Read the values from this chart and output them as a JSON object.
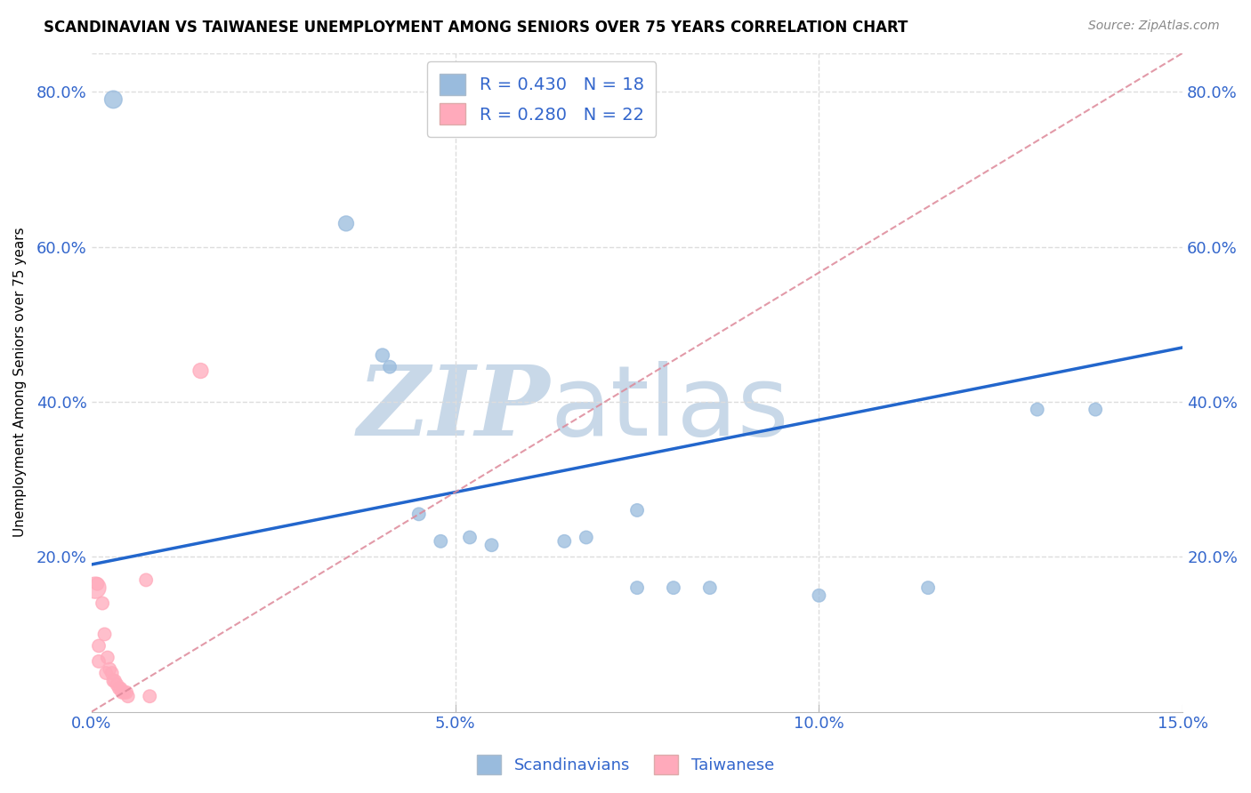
{
  "title": "SCANDINAVIAN VS TAIWANESE UNEMPLOYMENT AMONG SENIORS OVER 75 YEARS CORRELATION CHART",
  "source": "Source: ZipAtlas.com",
  "ylabel": "Unemployment Among Seniors over 75 years",
  "scandinavian_R": 0.43,
  "scandinavian_N": 18,
  "taiwanese_R": 0.28,
  "taiwanese_N": 22,
  "blue_color": "#99BBDD",
  "blue_edge_color": "#7799BB",
  "pink_color": "#FFAABB",
  "pink_edge_color": "#EE8899",
  "line_color": "#2266CC",
  "dashed_line_color": "#DD8899",
  "tick_label_color": "#3366CC",
  "scandinavian_points": [
    [
      0.3,
      79.0
    ],
    [
      3.5,
      63.0
    ],
    [
      4.0,
      46.0
    ],
    [
      4.1,
      44.5
    ],
    [
      4.5,
      25.5
    ],
    [
      4.8,
      22.0
    ],
    [
      5.2,
      22.5
    ],
    [
      5.5,
      21.5
    ],
    [
      6.5,
      22.0
    ],
    [
      6.8,
      22.5
    ],
    [
      7.5,
      26.0
    ],
    [
      7.5,
      16.0
    ],
    [
      8.0,
      16.0
    ],
    [
      8.5,
      16.0
    ],
    [
      10.0,
      15.0
    ],
    [
      11.5,
      16.0
    ],
    [
      13.0,
      39.0
    ],
    [
      13.8,
      39.0
    ]
  ],
  "taiwanese_points": [
    [
      0.05,
      16.0
    ],
    [
      0.08,
      16.5
    ],
    [
      0.1,
      8.5
    ],
    [
      0.1,
      6.5
    ],
    [
      0.15,
      14.0
    ],
    [
      0.18,
      10.0
    ],
    [
      0.2,
      5.0
    ],
    [
      0.22,
      7.0
    ],
    [
      0.25,
      5.5
    ],
    [
      0.28,
      5.0
    ],
    [
      0.3,
      4.0
    ],
    [
      0.32,
      4.0
    ],
    [
      0.35,
      3.5
    ],
    [
      0.38,
      3.0
    ],
    [
      0.4,
      3.0
    ],
    [
      0.42,
      2.5
    ],
    [
      0.45,
      2.5
    ],
    [
      0.48,
      2.5
    ],
    [
      0.5,
      2.0
    ],
    [
      0.75,
      17.0
    ],
    [
      0.8,
      2.0
    ],
    [
      1.5,
      44.0
    ]
  ],
  "scand_marker_sizes": [
    200,
    150,
    120,
    110,
    110,
    110,
    110,
    110,
    110,
    110,
    110,
    110,
    110,
    110,
    110,
    110,
    110,
    110
  ],
  "taiwan_marker_sizes": [
    300,
    110,
    110,
    110,
    110,
    110,
    110,
    110,
    110,
    110,
    110,
    110,
    110,
    110,
    110,
    110,
    110,
    110,
    110,
    110,
    110,
    150
  ],
  "scand_line_x": [
    0.0,
    15.0
  ],
  "scand_line_y": [
    19.0,
    47.0
  ],
  "taiwan_line_x": [
    0.0,
    15.0
  ],
  "taiwan_line_y": [
    0.0,
    85.0
  ],
  "xlim": [
    0.0,
    15.0
  ],
  "ylim": [
    0.0,
    85.0
  ],
  "xticks": [
    0.0,
    5.0,
    10.0,
    15.0
  ],
  "yticks": [
    0.0,
    20.0,
    40.0,
    60.0,
    80.0
  ],
  "grid_color": "#DDDDDD",
  "background_color": "#FFFFFF",
  "watermark_zip": "ZIP",
  "watermark_atlas": "atlas",
  "watermark_color": "#C8D8E8"
}
